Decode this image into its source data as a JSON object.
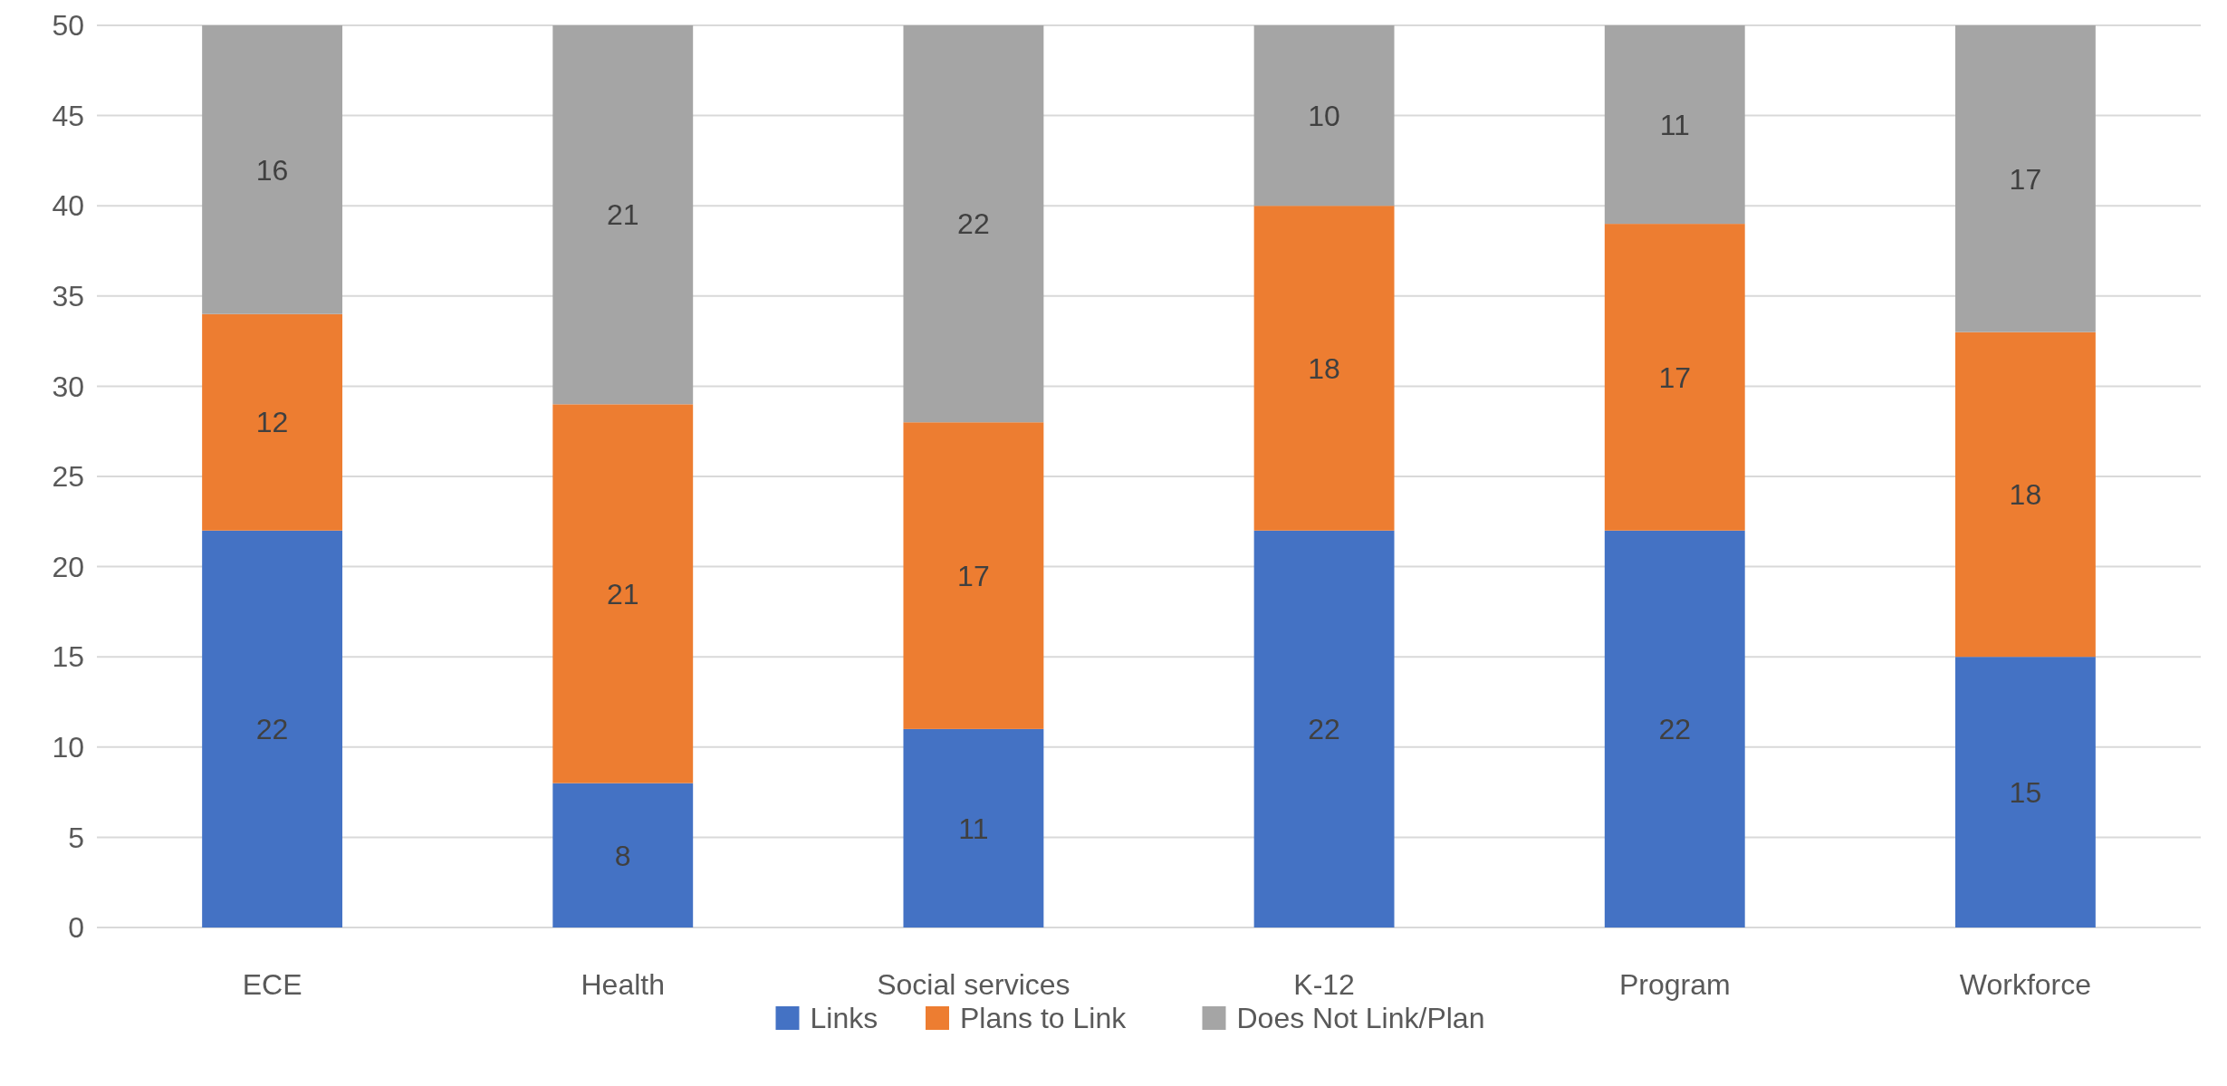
{
  "chart_data": {
    "type": "bar",
    "stacked": true,
    "categories": [
      "ECE",
      "Health",
      "Social services",
      "K-12",
      "Program",
      "Workforce"
    ],
    "series": [
      {
        "name": "Links",
        "color": "#4472c4",
        "values": [
          22,
          8,
          11,
          22,
          22,
          15
        ]
      },
      {
        "name": "Plans to Link",
        "color": "#ed7d31",
        "values": [
          12,
          21,
          17,
          18,
          17,
          18
        ]
      },
      {
        "name": "Does Not Link/Plan",
        "color": "#a5a5a5",
        "values": [
          16,
          21,
          22,
          10,
          11,
          17
        ]
      }
    ],
    "ylim": [
      0,
      50
    ],
    "yticks": [
      0,
      5,
      10,
      15,
      20,
      25,
      30,
      35,
      40,
      45,
      50
    ],
    "grid": "y",
    "legend": "bottom",
    "data_labels": true
  }
}
